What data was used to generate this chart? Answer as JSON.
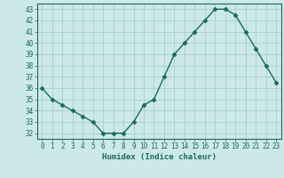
{
  "x": [
    0,
    1,
    2,
    3,
    4,
    5,
    6,
    7,
    8,
    9,
    10,
    11,
    12,
    13,
    14,
    15,
    16,
    17,
    18,
    19,
    20,
    21,
    22,
    23
  ],
  "y": [
    36,
    35,
    34.5,
    34,
    33.5,
    33,
    32,
    32,
    32,
    33,
    34.5,
    35,
    37,
    39,
    40,
    41,
    42,
    43,
    43,
    42.5,
    41,
    39.5,
    38,
    36.5
  ],
  "line_color": "#1a6b5a",
  "marker": "D",
  "marker_size": 2.5,
  "bg_color": "#cce8e8",
  "grid_color": "#aacfcf",
  "xlabel": "Humidex (Indice chaleur)",
  "xlim": [
    -0.5,
    23.5
  ],
  "ylim": [
    31.5,
    43.5
  ],
  "yticks": [
    32,
    33,
    34,
    35,
    36,
    37,
    38,
    39,
    40,
    41,
    42,
    43
  ],
  "xticks": [
    0,
    1,
    2,
    3,
    4,
    5,
    6,
    7,
    8,
    9,
    10,
    11,
    12,
    13,
    14,
    15,
    16,
    17,
    18,
    19,
    20,
    21,
    22,
    23
  ],
  "xtick_labels": [
    "0",
    "1",
    "2",
    "3",
    "4",
    "5",
    "6",
    "7",
    "8",
    "9",
    "10",
    "11",
    "12",
    "13",
    "14",
    "15",
    "16",
    "17",
    "18",
    "19",
    "20",
    "21",
    "22",
    "23"
  ],
  "label_color": "#1a6b5a",
  "tick_color": "#1a6b5a",
  "spine_color": "#1a6b5a",
  "xlabel_fontsize": 6.5,
  "tick_fontsize": 5.5,
  "linewidth": 1.0
}
